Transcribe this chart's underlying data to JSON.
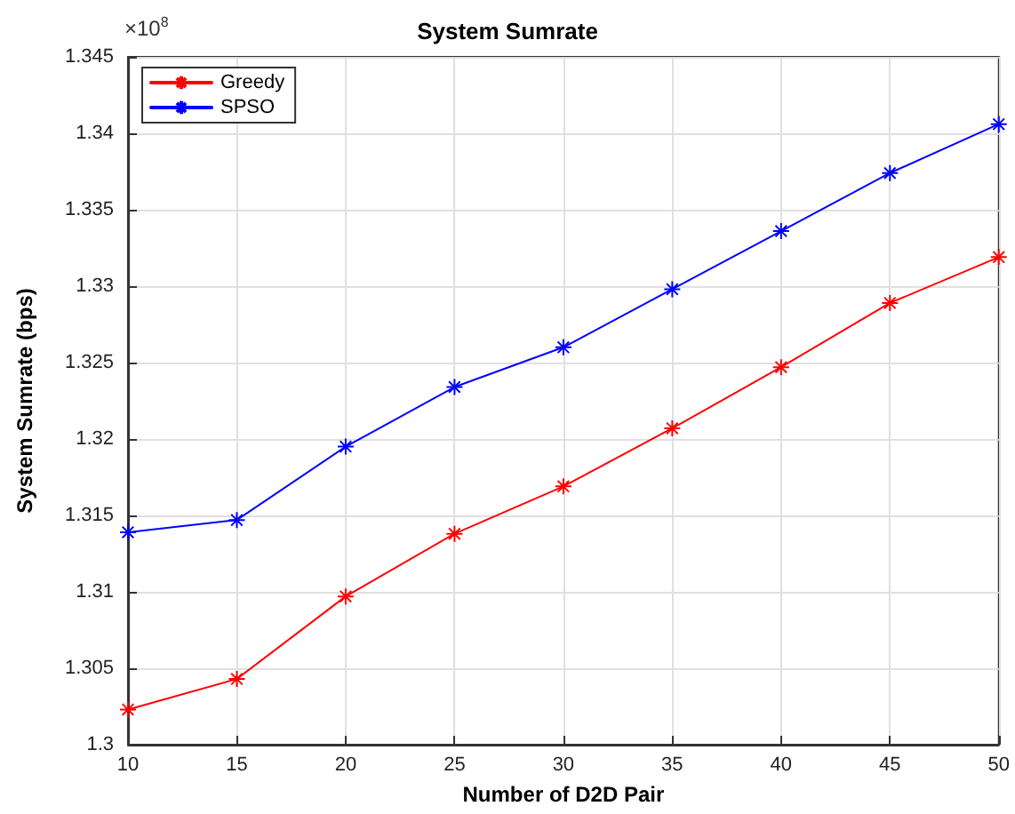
{
  "chart_data": {
    "type": "line",
    "title": "System Sumrate",
    "xlabel": "Number of D2D Pair",
    "ylabel": "System Sumrate (bps)",
    "annotations": [
      "×10$^{8}$"
    ],
    "x": [
      10,
      15,
      20,
      25,
      30,
      35,
      40,
      45,
      50
    ],
    "series": [
      {
        "name": "Greedy",
        "color": "#ff0000",
        "values": [
          1.3023,
          1.3043,
          1.3097,
          1.3138,
          1.3169,
          1.3207,
          1.3247,
          1.3289,
          1.3319
        ]
      },
      {
        "name": "SPSO",
        "color": "#0000ff",
        "values": [
          1.3139,
          1.3147,
          1.3195,
          1.3234,
          1.326,
          1.3298,
          1.3336,
          1.3374,
          1.3406
        ]
      }
    ],
    "xlim": [
      10,
      50
    ],
    "xticks": [
      10,
      15,
      20,
      25,
      30,
      35,
      40,
      45,
      50
    ],
    "ylim": [
      1.3,
      1.345
    ],
    "yticks": [
      1.3,
      1.305,
      1.31,
      1.315,
      1.32,
      1.325,
      1.33,
      1.335,
      1.34,
      1.345
    ],
    "grid": true,
    "legend": "top left",
    "marker": "cross",
    "line_style": "solid"
  }
}
